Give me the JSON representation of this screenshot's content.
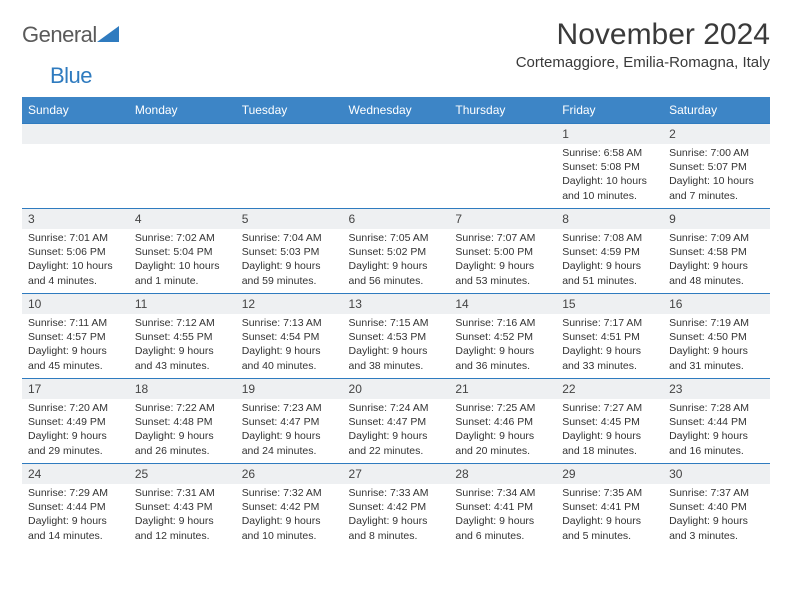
{
  "logo": {
    "word1": "General",
    "word2": "Blue",
    "tri_color": "#2f7bbf"
  },
  "title": "November 2024",
  "subtitle": "Cortemaggiore, Emilia-Romagna, Italy",
  "header_bg": "#3d85c6",
  "daynum_bg": "#eef0f2",
  "border_color": "#2f7bbf",
  "columns": [
    "Sunday",
    "Monday",
    "Tuesday",
    "Wednesday",
    "Thursday",
    "Friday",
    "Saturday"
  ],
  "weeks": [
    [
      {
        "n": "",
        "sr": "",
        "ss": "",
        "d1": "",
        "d2": ""
      },
      {
        "n": "",
        "sr": "",
        "ss": "",
        "d1": "",
        "d2": ""
      },
      {
        "n": "",
        "sr": "",
        "ss": "",
        "d1": "",
        "d2": ""
      },
      {
        "n": "",
        "sr": "",
        "ss": "",
        "d1": "",
        "d2": ""
      },
      {
        "n": "",
        "sr": "",
        "ss": "",
        "d1": "",
        "d2": ""
      },
      {
        "n": "1",
        "sr": "Sunrise: 6:58 AM",
        "ss": "Sunset: 5:08 PM",
        "d1": "Daylight: 10 hours",
        "d2": "and 10 minutes."
      },
      {
        "n": "2",
        "sr": "Sunrise: 7:00 AM",
        "ss": "Sunset: 5:07 PM",
        "d1": "Daylight: 10 hours",
        "d2": "and 7 minutes."
      }
    ],
    [
      {
        "n": "3",
        "sr": "Sunrise: 7:01 AM",
        "ss": "Sunset: 5:06 PM",
        "d1": "Daylight: 10 hours",
        "d2": "and 4 minutes."
      },
      {
        "n": "4",
        "sr": "Sunrise: 7:02 AM",
        "ss": "Sunset: 5:04 PM",
        "d1": "Daylight: 10 hours",
        "d2": "and 1 minute."
      },
      {
        "n": "5",
        "sr": "Sunrise: 7:04 AM",
        "ss": "Sunset: 5:03 PM",
        "d1": "Daylight: 9 hours",
        "d2": "and 59 minutes."
      },
      {
        "n": "6",
        "sr": "Sunrise: 7:05 AM",
        "ss": "Sunset: 5:02 PM",
        "d1": "Daylight: 9 hours",
        "d2": "and 56 minutes."
      },
      {
        "n": "7",
        "sr": "Sunrise: 7:07 AM",
        "ss": "Sunset: 5:00 PM",
        "d1": "Daylight: 9 hours",
        "d2": "and 53 minutes."
      },
      {
        "n": "8",
        "sr": "Sunrise: 7:08 AM",
        "ss": "Sunset: 4:59 PM",
        "d1": "Daylight: 9 hours",
        "d2": "and 51 minutes."
      },
      {
        "n": "9",
        "sr": "Sunrise: 7:09 AM",
        "ss": "Sunset: 4:58 PM",
        "d1": "Daylight: 9 hours",
        "d2": "and 48 minutes."
      }
    ],
    [
      {
        "n": "10",
        "sr": "Sunrise: 7:11 AM",
        "ss": "Sunset: 4:57 PM",
        "d1": "Daylight: 9 hours",
        "d2": "and 45 minutes."
      },
      {
        "n": "11",
        "sr": "Sunrise: 7:12 AM",
        "ss": "Sunset: 4:55 PM",
        "d1": "Daylight: 9 hours",
        "d2": "and 43 minutes."
      },
      {
        "n": "12",
        "sr": "Sunrise: 7:13 AM",
        "ss": "Sunset: 4:54 PM",
        "d1": "Daylight: 9 hours",
        "d2": "and 40 minutes."
      },
      {
        "n": "13",
        "sr": "Sunrise: 7:15 AM",
        "ss": "Sunset: 4:53 PM",
        "d1": "Daylight: 9 hours",
        "d2": "and 38 minutes."
      },
      {
        "n": "14",
        "sr": "Sunrise: 7:16 AM",
        "ss": "Sunset: 4:52 PM",
        "d1": "Daylight: 9 hours",
        "d2": "and 36 minutes."
      },
      {
        "n": "15",
        "sr": "Sunrise: 7:17 AM",
        "ss": "Sunset: 4:51 PM",
        "d1": "Daylight: 9 hours",
        "d2": "and 33 minutes."
      },
      {
        "n": "16",
        "sr": "Sunrise: 7:19 AM",
        "ss": "Sunset: 4:50 PM",
        "d1": "Daylight: 9 hours",
        "d2": "and 31 minutes."
      }
    ],
    [
      {
        "n": "17",
        "sr": "Sunrise: 7:20 AM",
        "ss": "Sunset: 4:49 PM",
        "d1": "Daylight: 9 hours",
        "d2": "and 29 minutes."
      },
      {
        "n": "18",
        "sr": "Sunrise: 7:22 AM",
        "ss": "Sunset: 4:48 PM",
        "d1": "Daylight: 9 hours",
        "d2": "and 26 minutes."
      },
      {
        "n": "19",
        "sr": "Sunrise: 7:23 AM",
        "ss": "Sunset: 4:47 PM",
        "d1": "Daylight: 9 hours",
        "d2": "and 24 minutes."
      },
      {
        "n": "20",
        "sr": "Sunrise: 7:24 AM",
        "ss": "Sunset: 4:47 PM",
        "d1": "Daylight: 9 hours",
        "d2": "and 22 minutes."
      },
      {
        "n": "21",
        "sr": "Sunrise: 7:25 AM",
        "ss": "Sunset: 4:46 PM",
        "d1": "Daylight: 9 hours",
        "d2": "and 20 minutes."
      },
      {
        "n": "22",
        "sr": "Sunrise: 7:27 AM",
        "ss": "Sunset: 4:45 PM",
        "d1": "Daylight: 9 hours",
        "d2": "and 18 minutes."
      },
      {
        "n": "23",
        "sr": "Sunrise: 7:28 AM",
        "ss": "Sunset: 4:44 PM",
        "d1": "Daylight: 9 hours",
        "d2": "and 16 minutes."
      }
    ],
    [
      {
        "n": "24",
        "sr": "Sunrise: 7:29 AM",
        "ss": "Sunset: 4:44 PM",
        "d1": "Daylight: 9 hours",
        "d2": "and 14 minutes."
      },
      {
        "n": "25",
        "sr": "Sunrise: 7:31 AM",
        "ss": "Sunset: 4:43 PM",
        "d1": "Daylight: 9 hours",
        "d2": "and 12 minutes."
      },
      {
        "n": "26",
        "sr": "Sunrise: 7:32 AM",
        "ss": "Sunset: 4:42 PM",
        "d1": "Daylight: 9 hours",
        "d2": "and 10 minutes."
      },
      {
        "n": "27",
        "sr": "Sunrise: 7:33 AM",
        "ss": "Sunset: 4:42 PM",
        "d1": "Daylight: 9 hours",
        "d2": "and 8 minutes."
      },
      {
        "n": "28",
        "sr": "Sunrise: 7:34 AM",
        "ss": "Sunset: 4:41 PM",
        "d1": "Daylight: 9 hours",
        "d2": "and 6 minutes."
      },
      {
        "n": "29",
        "sr": "Sunrise: 7:35 AM",
        "ss": "Sunset: 4:41 PM",
        "d1": "Daylight: 9 hours",
        "d2": "and 5 minutes."
      },
      {
        "n": "30",
        "sr": "Sunrise: 7:37 AM",
        "ss": "Sunset: 4:40 PM",
        "d1": "Daylight: 9 hours",
        "d2": "and 3 minutes."
      }
    ]
  ]
}
